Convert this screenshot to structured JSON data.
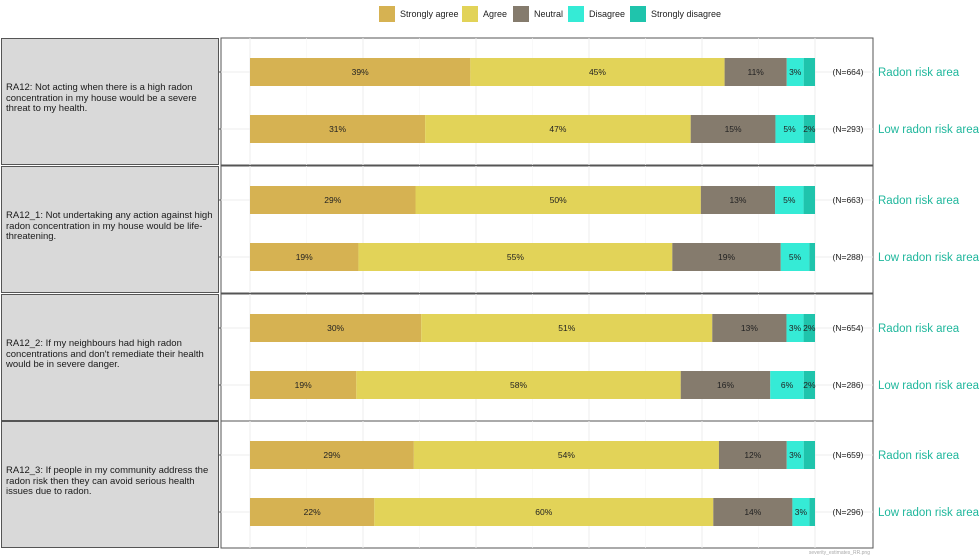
{
  "chart_data": {
    "type": "bar",
    "orientation": "horizontal",
    "stacked": true,
    "legend": {
      "position": "top",
      "entries": [
        {
          "name": "Strongly agree",
          "color": "#d6b252"
        },
        {
          "name": "Agree",
          "color": "#e2d358"
        },
        {
          "name": "Neutral",
          "color": "#857b6d"
        },
        {
          "name": "Disagree",
          "color": "#35ebd6"
        },
        {
          "name": "Strongly disagree",
          "color": "#1fc4ac"
        }
      ]
    },
    "grid": true,
    "panels": [
      {
        "question": "RA12: Not acting when there is a high radon concentration in my house would be a severe threat to my health.",
        "rows": [
          {
            "group": "Radon risk area",
            "n_label": "(N=664)",
            "values": [
              39,
              45,
              11,
              3,
              2
            ],
            "labels": [
              "39%",
              "45%",
              "11%",
              "3%",
              ""
            ]
          },
          {
            "group": "Low radon risk area",
            "n_label": "(N=293)",
            "values": [
              31,
              47,
              15,
              5,
              2
            ],
            "labels": [
              "31%",
              "47%",
              "15%",
              "5%",
              "2%"
            ]
          }
        ]
      },
      {
        "question": "RA12_1: Not undertaking any action against high radon concentration in my house would be life-threatening.",
        "rows": [
          {
            "group": "Radon risk area",
            "n_label": "(N=663)",
            "values": [
              29,
              50,
              13,
              5,
              2
            ],
            "labels": [
              "29%",
              "50%",
              "13%",
              "5%",
              ""
            ]
          },
          {
            "group": "Low radon risk area",
            "n_label": "(N=288)",
            "values": [
              19,
              55,
              19,
              5,
              1
            ],
            "labels": [
              "19%",
              "55%",
              "19%",
              "5%",
              ""
            ]
          }
        ]
      },
      {
        "question": "RA12_2: If my neighbours had high radon concentrations and don't remediate their health would be in severe danger.",
        "rows": [
          {
            "group": "Radon risk area",
            "n_label": "(N=654)",
            "values": [
              30,
              51,
              13,
              3,
              2
            ],
            "labels": [
              "30%",
              "51%",
              "13%",
              "3%",
              "2%"
            ]
          },
          {
            "group": "Low radon risk area",
            "n_label": "(N=286)",
            "values": [
              19,
              58,
              16,
              6,
              2
            ],
            "labels": [
              "19%",
              "58%",
              "16%",
              "6%",
              "2%"
            ]
          }
        ]
      },
      {
        "question": "RA12_3: If people in my community address the radon risk then they can avoid serious health issues due to radon.",
        "rows": [
          {
            "group": "Radon risk area",
            "n_label": "(N=659)",
            "values": [
              29,
              54,
              12,
              3,
              2
            ],
            "labels": [
              "29%",
              "54%",
              "12%",
              "3%",
              ""
            ]
          },
          {
            "group": "Low radon risk area",
            "n_label": "(N=296)",
            "values": [
              22,
              60,
              14,
              3,
              1
            ],
            "labels": [
              "22%",
              "60%",
              "14%",
              "3%",
              ""
            ]
          }
        ]
      }
    ],
    "group_label_color": "#1fb79c",
    "caption": "severity_estimates_RR.png"
  }
}
